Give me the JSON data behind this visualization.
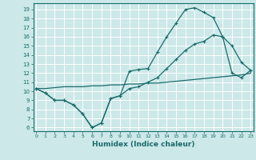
{
  "xlabel": "Humidex (Indice chaleur)",
  "bg_color": "#cce8e8",
  "grid_color": "#ffffff",
  "line_color": "#1a6b6b",
  "xticks": [
    0,
    1,
    2,
    3,
    4,
    5,
    6,
    7,
    8,
    9,
    10,
    11,
    12,
    13,
    14,
    15,
    16,
    17,
    18,
    19,
    20,
    21,
    22,
    23
  ],
  "yticks": [
    6,
    7,
    8,
    9,
    10,
    11,
    12,
    13,
    14,
    15,
    16,
    17,
    18,
    19
  ],
  "xlim": [
    -0.3,
    23.3
  ],
  "ylim": [
    5.6,
    19.7
  ],
  "line1_x": [
    0,
    1,
    2,
    3,
    4,
    5,
    6,
    7,
    8,
    9,
    10,
    11,
    12,
    13,
    14,
    15,
    16,
    17,
    18,
    19,
    20,
    21,
    22,
    23
  ],
  "line1_y": [
    10.3,
    9.8,
    9.0,
    9.0,
    8.5,
    7.5,
    6.0,
    6.5,
    9.2,
    9.5,
    12.2,
    12.4,
    12.5,
    14.3,
    16.0,
    17.5,
    19.0,
    19.2,
    18.7,
    18.1,
    16.0,
    15.0,
    13.2,
    12.3
  ],
  "line2_x": [
    0,
    1,
    2,
    3,
    4,
    5,
    6,
    7,
    8,
    9,
    10,
    11,
    12,
    13,
    14,
    15,
    16,
    17,
    18,
    19,
    20,
    21,
    22,
    23
  ],
  "line2_y": [
    10.3,
    9.8,
    9.0,
    9.0,
    8.5,
    7.5,
    6.0,
    6.5,
    9.2,
    9.5,
    10.3,
    10.5,
    11.0,
    11.5,
    12.5,
    13.5,
    14.5,
    15.2,
    15.5,
    16.2,
    16.0,
    12.0,
    11.5,
    12.3
  ],
  "line3_x": [
    0,
    1,
    2,
    3,
    4,
    5,
    6,
    7,
    8,
    9,
    10,
    11,
    12,
    13,
    14,
    15,
    16,
    17,
    18,
    19,
    20,
    21,
    22,
    23
  ],
  "line3_y": [
    10.3,
    10.3,
    10.4,
    10.5,
    10.5,
    10.5,
    10.6,
    10.6,
    10.7,
    10.7,
    10.8,
    10.8,
    10.9,
    10.9,
    11.0,
    11.1,
    11.2,
    11.3,
    11.4,
    11.5,
    11.6,
    11.7,
    11.8,
    12.0
  ]
}
